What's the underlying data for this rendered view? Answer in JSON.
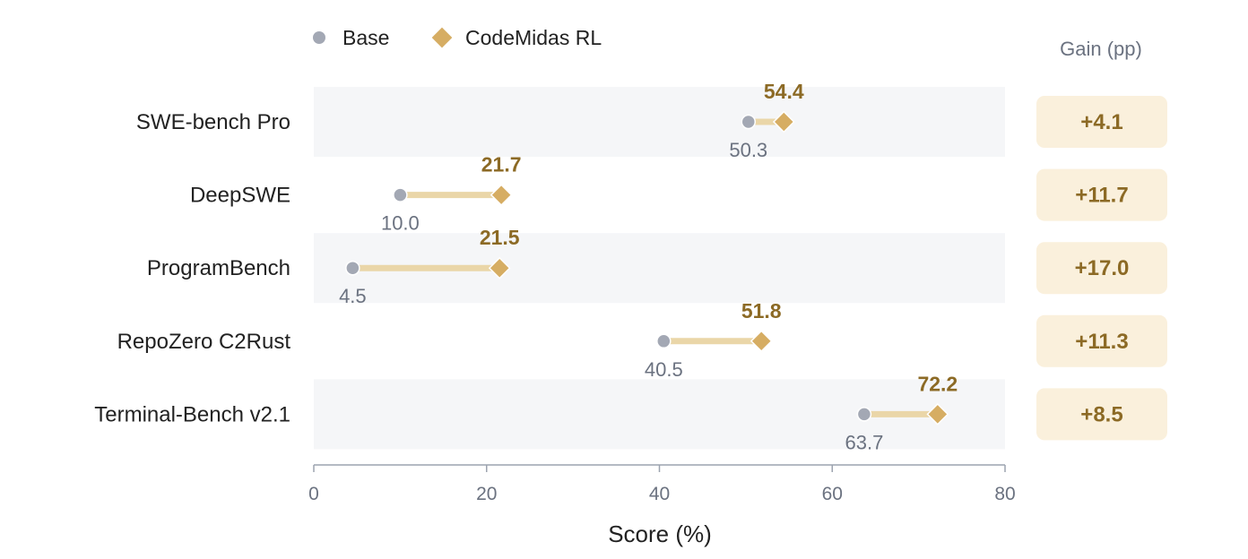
{
  "chart_data": {
    "type": "dumbbell",
    "xlabel": "Score (%)",
    "xlim": [
      0,
      80
    ],
    "xticks": [
      0,
      20,
      40,
      60,
      80
    ],
    "legend": {
      "position": "top-left",
      "entries": [
        "Base",
        "CodeMidas RL"
      ]
    },
    "gain_header": "Gain (pp)",
    "categories": [
      "SWE-bench Pro",
      "DeepSWE",
      "ProgramBench",
      "RepoZero C2Rust",
      "Terminal-Bench v2.1"
    ],
    "series": [
      {
        "name": "Base",
        "values": [
          50.3,
          10.0,
          4.5,
          40.5,
          63.7
        ],
        "labels": [
          "50.3",
          "10.0",
          "4.5",
          "40.5",
          "63.7"
        ]
      },
      {
        "name": "CodeMidas RL",
        "values": [
          54.4,
          21.7,
          21.5,
          51.8,
          72.2
        ],
        "labels": [
          "54.4",
          "21.7",
          "21.5",
          "51.8",
          "72.2"
        ]
      }
    ],
    "gains": [
      "+4.1",
      "+11.7",
      "+17.0",
      "+11.3",
      "+8.5"
    ],
    "colors": {
      "base": "#a3a8b4",
      "rl": "#d6ad63",
      "connector": "#ead6a8",
      "band": "#f5f6f8",
      "gain_box": "#faf0dc",
      "gain_text": "#8c6a25",
      "axis": "#9ca3af"
    }
  }
}
